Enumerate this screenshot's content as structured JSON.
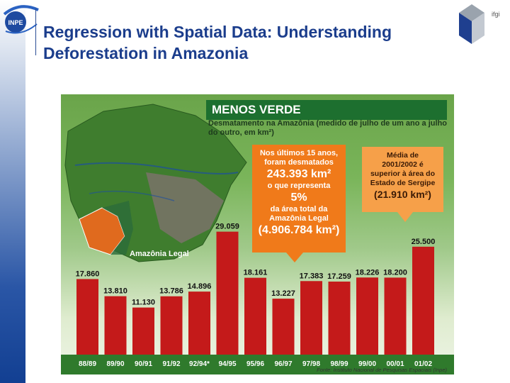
{
  "slide": {
    "title": "Regression with Spatial Data: Understanding Deforestation in Amazonia",
    "logo_text": "INPE",
    "corner_text": "ifgi"
  },
  "colors": {
    "bar": "#c41a1a",
    "title_band": "#1d6f2f",
    "callout_primary": "#f07a1a",
    "callout_secondary": "#f6a049",
    "slide_title": "#1b3d8c"
  },
  "figure": {
    "callout_total": {
      "line1": "Nos últimos 15 anos,",
      "line2": "foram desmatados",
      "big1": "243.393 km²",
      "line3": "o que representa",
      "big2": "5%",
      "line4": "da área total da",
      "line5": "Amazônia Legal",
      "big3": "(4.906.784 km²)"
    },
    "callout_mean": {
      "line1": "Média de",
      "line2": "2001/2002 é",
      "line3": "superior à área do",
      "line4": "Estado de Sergipe",
      "big1": "(21.910 km²)"
    },
    "map_label": "Amazônia Legal",
    "source": "Fonte: Instituto Nacional de Pesquisas Espaciais (Inpe)"
  },
  "chart_data": {
    "type": "bar",
    "title": "MENOS VERDE",
    "subtitle": "Desmatamento na Amazônia (medido de julho de um ano a julho do outro, em km²)",
    "categories": [
      "88/89",
      "89/90",
      "90/91",
      "91/92",
      "92/94*",
      "94/95",
      "95/96",
      "96/97",
      "97/98",
      "98/99",
      "99/00",
      "00/01",
      "01/02"
    ],
    "values": [
      17860,
      13810,
      11130,
      13786,
      14896,
      29059,
      18161,
      13227,
      17383,
      17259,
      18226,
      18200,
      25500
    ],
    "value_labels": [
      "17.860",
      "13.810",
      "11.130",
      "13.786",
      "14.896",
      "29.059",
      "18.161",
      "13.227",
      "17.383",
      "17.259",
      "18.226",
      "18.200",
      "25.500"
    ],
    "xlabel": "",
    "ylabel": "",
    "ylim": [
      0,
      30000
    ],
    "grid": false,
    "legend": "none"
  }
}
